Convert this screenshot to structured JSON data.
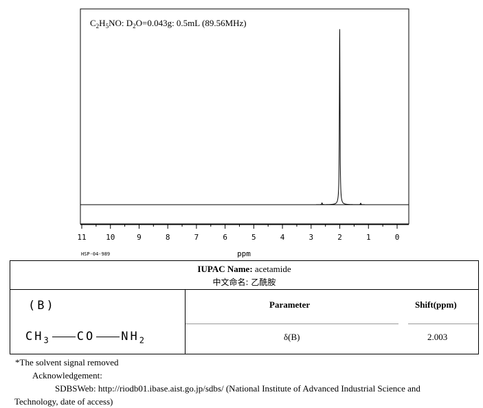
{
  "chart_data": {
    "type": "line",
    "title": "C2H5NO: D2O=0.043g: 0.5mL (89.56MHz)",
    "xlabel": "ppm",
    "xlim": [
      11,
      0
    ],
    "x_ticks": [
      "11",
      "10",
      "9",
      "8",
      "7",
      "6",
      "5",
      "4",
      "3",
      "2",
      "1",
      "0"
    ],
    "peaks": [
      {
        "ppm": 2.003,
        "intensity": 1.0
      },
      {
        "ppm": 2.62,
        "intensity": 0.01
      },
      {
        "ppm": 1.27,
        "intensity": 0.008
      }
    ],
    "code": "HSP-04-989"
  },
  "table": {
    "iupac_label": "IUPAC Name:",
    "iupac_value": "acetamide",
    "chinese_label": "中文命名:",
    "chinese_value": "乙酰胺",
    "group_label": "(B)",
    "formula": {
      "ch": "CH",
      "ch_sub": "3",
      "co": "CO",
      "nh": "NH",
      "nh_sub": "2"
    },
    "param_header": "Parameter",
    "shift_header": "Shift(ppm)",
    "param_value": "δ(B)",
    "shift_value": "2.003"
  },
  "footnotes": {
    "note": "*The solvent signal removed",
    "ack": "Acknowledgement:",
    "source_line1": "SDBSWeb: http://riodb01.ibase.aist.go.jp/sdbs/ (National Institute of Advanced Industrial Science and",
    "source_line2": "Technology, date of access)"
  }
}
